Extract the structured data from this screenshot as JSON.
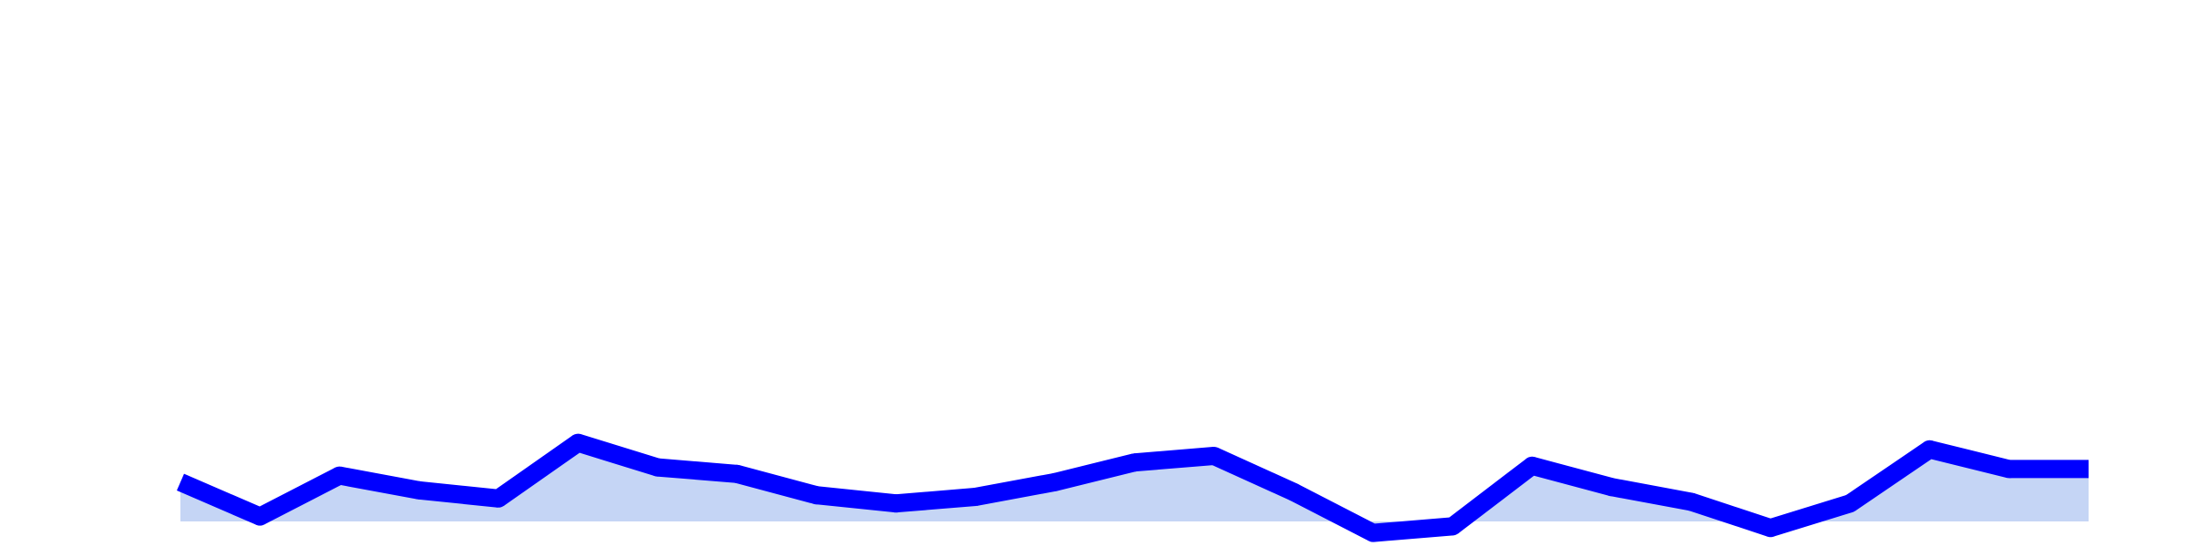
{
  "chart_data": {
    "type": "area",
    "x": [
      0,
      1,
      2,
      3,
      4,
      5,
      6,
      7,
      8,
      9,
      10,
      11,
      12,
      13,
      14,
      15,
      16,
      17,
      18,
      19,
      20,
      21,
      22,
      23,
      24
    ],
    "series": [
      {
        "values": [
          4.8,
          0.6,
          5.6,
          3.8,
          2.8,
          9.6,
          6.6,
          5.8,
          3.2,
          2.2,
          3.0,
          4.8,
          7.2,
          8.0,
          3.6,
          -1.4,
          -0.6,
          6.8,
          4.2,
          2.4,
          -0.8,
          2.2,
          8.8,
          6.4,
          6.4
        ],
        "line_color": "#0000ff",
        "fill_color": "#c5d5f5"
      }
    ],
    "ylim": [
      -4,
      40
    ],
    "xlabel": "",
    "ylabel": "",
    "title": "",
    "grid": false,
    "axes_visible": false,
    "legend": "none"
  }
}
